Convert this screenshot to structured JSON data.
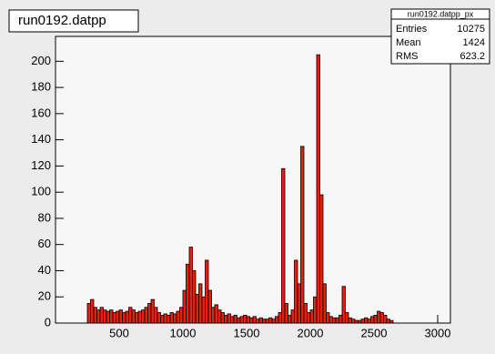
{
  "chart_data": {
    "type": "histogram",
    "title": "run0192.datpp",
    "bins": [
      250,
      275,
      300,
      325,
      350,
      375,
      400,
      425,
      450,
      475,
      500,
      525,
      550,
      575,
      600,
      625,
      650,
      675,
      700,
      725,
      750,
      775,
      800,
      825,
      850,
      875,
      900,
      925,
      950,
      975,
      1000,
      1025,
      1050,
      1075,
      1100,
      1125,
      1150,
      1175,
      1200,
      1225,
      1250,
      1275,
      1300,
      1325,
      1350,
      1375,
      1400,
      1425,
      1450,
      1475,
      1500,
      1525,
      1550,
      1575,
      1600,
      1625,
      1650,
      1675,
      1700,
      1725,
      1750,
      1775,
      1800,
      1825,
      1850,
      1875,
      1900,
      1925,
      1950,
      1975,
      2000,
      2025,
      2050,
      2075,
      2100,
      2125,
      2150,
      2175,
      2200,
      2225,
      2250,
      2275,
      2300,
      2325,
      2350,
      2375,
      2400,
      2425,
      2450,
      2475,
      2500,
      2525,
      2550,
      2575,
      2600,
      2625,
      2650
    ],
    "values": [
      15,
      18,
      12,
      10,
      12,
      10,
      9,
      10,
      8,
      9,
      10,
      8,
      9,
      12,
      10,
      8,
      9,
      10,
      12,
      15,
      18,
      12,
      8,
      6,
      7,
      6,
      8,
      7,
      9,
      12,
      25,
      45,
      58,
      40,
      22,
      30,
      20,
      48,
      25,
      12,
      14,
      10,
      8,
      6,
      7,
      5,
      6,
      4,
      5,
      6,
      5,
      4,
      5,
      3,
      4,
      3,
      3,
      4,
      3,
      5,
      8,
      118,
      15,
      6,
      10,
      48,
      30,
      135,
      15,
      8,
      10,
      20,
      205,
      98,
      30,
      8,
      5,
      4,
      4,
      6,
      28,
      8,
      4,
      3,
      2,
      2,
      3,
      4,
      3,
      5,
      6,
      9,
      8,
      6,
      3,
      2
    ],
    "color": "#e8200c",
    "xlim": [
      0,
      3100
    ],
    "ylim": [
      0,
      219
    ],
    "xticks": [
      500,
      1000,
      1500,
      2000,
      2500,
      3000
    ],
    "yticks": [
      0,
      20,
      40,
      60,
      80,
      100,
      120,
      140,
      160,
      180,
      200
    ],
    "stats": {
      "title": "run0192.datpp_px",
      "labels": [
        "Entries",
        "Mean",
        "RMS"
      ],
      "values": [
        10275,
        1424,
        623.2
      ]
    }
  }
}
